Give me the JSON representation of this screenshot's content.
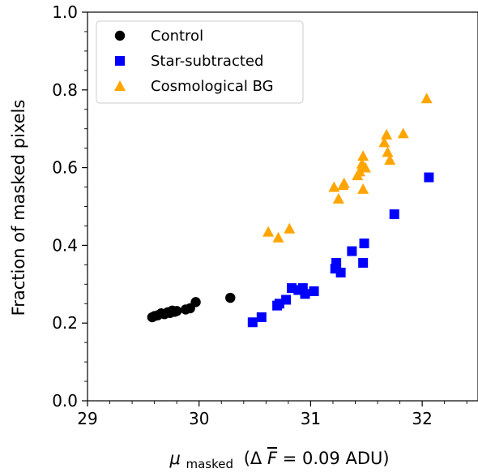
{
  "chart_data": {
    "type": "scatter",
    "title": "",
    "xlabel": "μ_masked (ΔF̄ = 0.09 ADU)",
    "xlabel_parts": {
      "mu": "μ",
      "sub": "masked",
      "rest_pre": "(Δ",
      "fbar": "F",
      "rest_post": " = 0.09 ADU)"
    },
    "ylabel": "Fraction of masked pixels",
    "xlim": [
      29,
      32.5
    ],
    "ylim": [
      0.0,
      1.0
    ],
    "x_ticks": [
      "29",
      "30",
      "31",
      "32"
    ],
    "y_ticks": [
      "0.0",
      "0.2",
      "0.4",
      "0.6",
      "0.8",
      "1.0"
    ],
    "grid": false,
    "legend_position": "top-left",
    "series": [
      {
        "name": "Control",
        "marker": "circle",
        "color": "#000000",
        "points": [
          {
            "x": 29.58,
            "y": 0.215
          },
          {
            "x": 29.6,
            "y": 0.218
          },
          {
            "x": 29.63,
            "y": 0.22
          },
          {
            "x": 29.66,
            "y": 0.225
          },
          {
            "x": 29.69,
            "y": 0.223
          },
          {
            "x": 29.72,
            "y": 0.228
          },
          {
            "x": 29.74,
            "y": 0.226
          },
          {
            "x": 29.76,
            "y": 0.232
          },
          {
            "x": 29.78,
            "y": 0.229
          },
          {
            "x": 29.8,
            "y": 0.231
          },
          {
            "x": 29.88,
            "y": 0.235
          },
          {
            "x": 29.92,
            "y": 0.238
          },
          {
            "x": 29.97,
            "y": 0.254
          },
          {
            "x": 30.28,
            "y": 0.265
          }
        ]
      },
      {
        "name": "Star-subtracted",
        "marker": "square",
        "color": "#0000ff",
        "points": [
          {
            "x": 30.48,
            "y": 0.202
          },
          {
            "x": 30.56,
            "y": 0.215
          },
          {
            "x": 30.7,
            "y": 0.245
          },
          {
            "x": 30.72,
            "y": 0.25
          },
          {
            "x": 30.78,
            "y": 0.26
          },
          {
            "x": 30.83,
            "y": 0.29
          },
          {
            "x": 30.89,
            "y": 0.285
          },
          {
            "x": 30.93,
            "y": 0.29
          },
          {
            "x": 30.95,
            "y": 0.275
          },
          {
            "x": 31.03,
            "y": 0.282
          },
          {
            "x": 31.22,
            "y": 0.34
          },
          {
            "x": 31.23,
            "y": 0.355
          },
          {
            "x": 31.27,
            "y": 0.33
          },
          {
            "x": 31.37,
            "y": 0.385
          },
          {
            "x": 31.48,
            "y": 0.405
          },
          {
            "x": 31.47,
            "y": 0.355
          },
          {
            "x": 31.75,
            "y": 0.48
          },
          {
            "x": 32.06,
            "y": 0.575
          }
        ]
      },
      {
        "name": "Cosmological BG",
        "marker": "triangle",
        "color": "#ffa500",
        "points": [
          {
            "x": 30.62,
            "y": 0.435
          },
          {
            "x": 30.71,
            "y": 0.42
          },
          {
            "x": 30.81,
            "y": 0.443
          },
          {
            "x": 31.21,
            "y": 0.55
          },
          {
            "x": 31.25,
            "y": 0.52
          },
          {
            "x": 31.29,
            "y": 0.555
          },
          {
            "x": 31.3,
            "y": 0.56
          },
          {
            "x": 31.42,
            "y": 0.58
          },
          {
            "x": 31.44,
            "y": 0.59
          },
          {
            "x": 31.46,
            "y": 0.61
          },
          {
            "x": 31.47,
            "y": 0.545
          },
          {
            "x": 31.47,
            "y": 0.63
          },
          {
            "x": 31.49,
            "y": 0.6
          },
          {
            "x": 31.66,
            "y": 0.665
          },
          {
            "x": 31.68,
            "y": 0.685
          },
          {
            "x": 31.69,
            "y": 0.64
          },
          {
            "x": 31.71,
            "y": 0.62
          },
          {
            "x": 31.83,
            "y": 0.688
          },
          {
            "x": 32.04,
            "y": 0.778
          }
        ]
      }
    ]
  }
}
